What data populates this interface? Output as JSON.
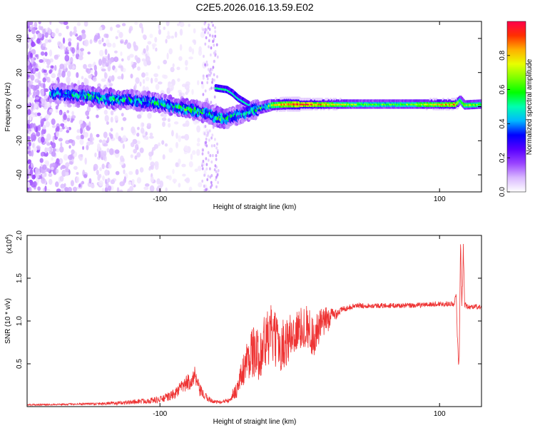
{
  "page_title": "C2E5.2026.016.13.59.E02",
  "chart_data": [
    {
      "type": "heatmap",
      "title": "C2E5.2026.016.13.59.E02",
      "xlabel": "Height of straight line (km)",
      "ylabel": "Frequency (Hz)",
      "xlim": [
        -195,
        130
      ],
      "ylim": [
        -50,
        50
      ],
      "x_ticks": [
        -100,
        100
      ],
      "y_ticks": [
        40,
        20,
        0,
        -20,
        -40
      ],
      "x_tick_labels": [
        "-100",
        "100"
      ],
      "y_tick_labels": [
        "40",
        "20",
        "0",
        "-20",
        "-40"
      ],
      "colorbar": {
        "label": "Normalized spectral amplitude",
        "range": [
          0,
          1
        ],
        "ticks": [
          0.0,
          0.2,
          0.4,
          0.6,
          0.8
        ],
        "tick_labels": [
          "0.0",
          "0.2",
          "0.4",
          "0.6",
          "0.8"
        ],
        "colors": [
          "#ffffff",
          "#d9b8ff",
          "#9a44ff",
          "#5800ff",
          "#0000ff",
          "#00b8ff",
          "#00ffb0",
          "#00ff00",
          "#7cff00",
          "#e8ff00",
          "#ffb000",
          "#ff3000",
          "#ff004c"
        ]
      },
      "ridge": {
        "x": [
          -175,
          -160,
          -140,
          -120,
          -100,
          -80,
          -65,
          -55,
          -48,
          -40,
          -30,
          -20,
          -10,
          0,
          20,
          50,
          80,
          100,
          112,
          115,
          118,
          130
        ],
        "y": [
          8,
          7,
          5,
          4,
          2,
          -1,
          -4,
          -7,
          -6,
          -4,
          -1,
          1,
          1.5,
          1.5,
          1.5,
          1.5,
          1.5,
          1.5,
          1.5,
          4,
          1,
          1.5
        ]
      },
      "ridge_amplitude": [
        0.45,
        0.5,
        0.55,
        0.5,
        0.5,
        0.55,
        0.5,
        0.6,
        0.45,
        0.5,
        0.55,
        0.7,
        0.85,
        0.95,
        0.8,
        0.6,
        0.65,
        0.8,
        0.85,
        0.6,
        0.7,
        0.65
      ],
      "branch": {
        "x": [
          -60,
          -52,
          -48,
          -44,
          -40,
          -36
        ],
        "y": [
          11,
          10,
          8,
          5,
          3,
          1
        ]
      }
    },
    {
      "type": "line",
      "xlabel": "Height of straight line (km)",
      "ylabel": "SNR (10 * v/v)",
      "scale_label": "(x10",
      "scale_exponent": "4",
      "scale_close": ")",
      "xlim": [
        -195,
        130
      ],
      "ylim": [
        0,
        2.0
      ],
      "x_ticks": [
        -100,
        100
      ],
      "y_ticks": [
        0.5,
        1.0,
        1.5,
        2.0
      ],
      "x_tick_labels": [
        "-100",
        "100"
      ],
      "y_tick_labels": [
        "0.5",
        "1.0",
        "1.5",
        "2.0"
      ],
      "series": [
        {
          "name": "SNR",
          "color": "#ee3333",
          "x": [
            -195,
            -160,
            -130,
            -115,
            -100,
            -90,
            -85,
            -80,
            -75,
            -72,
            -68,
            -62,
            -55,
            -50,
            -45,
            -40,
            -35,
            -30,
            -25,
            -20,
            -15,
            -10,
            -5,
            0,
            5,
            10,
            15,
            20,
            25,
            30,
            35,
            40,
            60,
            80,
            100,
            110,
            112,
            113,
            114,
            115,
            116,
            117,
            118,
            120,
            125,
            130
          ],
          "y": [
            0.02,
            0.03,
            0.04,
            0.06,
            0.08,
            0.14,
            0.22,
            0.28,
            0.35,
            0.2,
            0.12,
            0.06,
            0.05,
            0.1,
            0.2,
            0.45,
            0.65,
            0.6,
            0.75,
            0.85,
            0.7,
            0.75,
            0.85,
            0.9,
            0.95,
            0.8,
            0.95,
            1.02,
            1.08,
            1.13,
            1.16,
            1.18,
            1.18,
            1.18,
            1.2,
            1.2,
            1.28,
            0.7,
            0.45,
            1.95,
            1.15,
            1.85,
            1.2,
            1.16,
            1.17,
            1.16
          ],
          "noise_amplitude": [
            0.01,
            0.01,
            0.02,
            0.03,
            0.04,
            0.06,
            0.08,
            0.1,
            0.12,
            0.08,
            0.05,
            0.02,
            0.02,
            0.05,
            0.1,
            0.2,
            0.3,
            0.3,
            0.35,
            0.35,
            0.3,
            0.3,
            0.28,
            0.25,
            0.25,
            0.25,
            0.2,
            0.15,
            0.08,
            0.04,
            0.03,
            0.03,
            0.03,
            0.03,
            0.03,
            0.03,
            0.05,
            0.1,
            0.1,
            0.05,
            0.1,
            0.05,
            0.05,
            0.03,
            0.03,
            0.03
          ]
        }
      ]
    }
  ]
}
